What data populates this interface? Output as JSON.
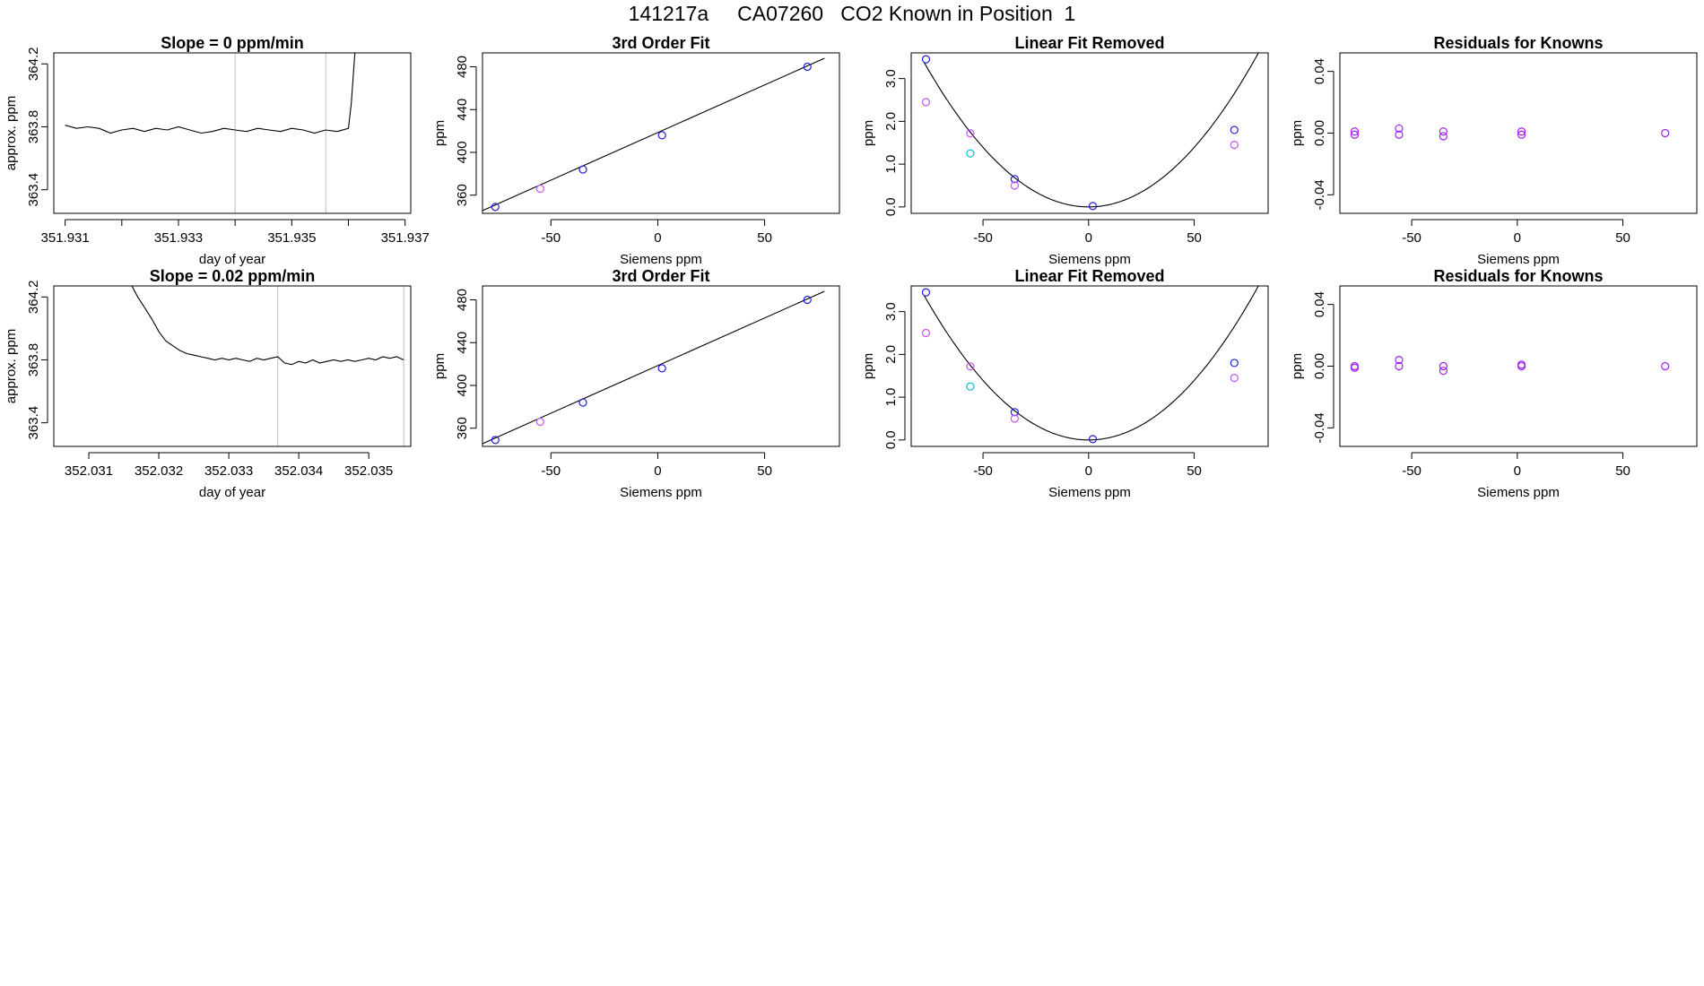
{
  "page_title": "141217a     CA07260   CO2 Known in Position  1",
  "colors": {
    "axis": "#000000",
    "line": "#000000",
    "vline": "#bebebe",
    "blue": "#1f1fd8",
    "violet": "#a020f0",
    "magenta": "#c355f0",
    "cyan": "#00bcd4"
  },
  "chart_data": [
    {
      "type": "line",
      "title": "Slope =  0  ppm/min",
      "xlabel": "day of year",
      "ylabel": "approx. ppm",
      "xlim": [
        351.9308,
        351.9371
      ],
      "ylim": [
        363.25,
        364.27
      ],
      "xticks": [
        351.931,
        351.932,
        351.933,
        351.934,
        351.935,
        351.936,
        351.937
      ],
      "xtick_labels": [
        "351.931",
        "",
        "351.933",
        "",
        "351.935",
        "",
        "351.937"
      ],
      "yticks": [
        363.4,
        363.8,
        364.2
      ],
      "ytick_labels": [
        "363.4",
        "363.8",
        "364.2"
      ],
      "vlines": [
        351.934,
        351.9356
      ],
      "x": [
        351.931,
        351.9312,
        351.9314,
        351.9316,
        351.9318,
        351.932,
        351.9322,
        351.9324,
        351.9326,
        351.9328,
        351.933,
        351.9332,
        351.9334,
        351.9336,
        351.9338,
        351.934,
        351.9342,
        351.9344,
        351.9346,
        351.9348,
        351.935,
        351.9352,
        351.9354,
        351.9356,
        351.9358,
        351.936,
        351.93605,
        351.93612
      ],
      "y": [
        363.81,
        363.79,
        363.8,
        363.79,
        363.76,
        363.78,
        363.79,
        363.77,
        363.79,
        363.78,
        363.8,
        363.78,
        363.76,
        363.77,
        363.79,
        363.78,
        363.77,
        363.79,
        363.78,
        363.77,
        363.79,
        363.78,
        363.76,
        363.78,
        363.77,
        363.79,
        363.95,
        364.3
      ]
    },
    {
      "type": "scatter",
      "title": "3rd Order Fit",
      "xlabel": "Siemens ppm",
      "ylabel": "ppm",
      "xlim": [
        -82,
        85
      ],
      "ylim": [
        343,
        493
      ],
      "xticks": [
        -50,
        0,
        50
      ],
      "xtick_labels": [
        "-50",
        "0",
        "50"
      ],
      "yticks": [
        360,
        400,
        440,
        480
      ],
      "ytick_labels": [
        "360",
        "400",
        "440",
        "480"
      ],
      "curve": [
        [
          -82,
          345.5
        ],
        [
          78,
          488
        ]
      ],
      "series": [
        {
          "name": "blue",
          "color": "blue",
          "x": [
            -76,
            -35,
            2,
            70
          ],
          "y": [
            349,
            384,
            416,
            480
          ]
        },
        {
          "name": "magenta",
          "color": "magenta",
          "x": [
            -55
          ],
          "y": [
            366
          ]
        }
      ]
    },
    {
      "type": "scatter",
      "title": "Linear Fit Removed",
      "xlabel": "Siemens ppm",
      "ylabel": "ppm",
      "xlim": [
        -84,
        85
      ],
      "ylim": [
        -0.15,
        3.6
      ],
      "xticks": [
        -50,
        0,
        50
      ],
      "xtick_labels": [
        "-50",
        "0",
        "50"
      ],
      "yticks": [
        0.0,
        1.0,
        2.0,
        3.0
      ],
      "ytick_labels": [
        "0.0",
        "1.0",
        "2.0",
        "3.0"
      ],
      "parabola": {
        "a": 0.000557,
        "x0": 0,
        "y0": 0
      },
      "series": [
        {
          "name": "blue",
          "color": "blue",
          "x": [
            -77,
            -35,
            2,
            69
          ],
          "y": [
            3.45,
            0.65,
            0.02,
            1.8
          ]
        },
        {
          "name": "magenta",
          "color": "magenta",
          "x": [
            -77,
            -56,
            -35,
            69
          ],
          "y": [
            2.45,
            1.72,
            0.5,
            1.45
          ]
        },
        {
          "name": "cyan",
          "color": "cyan",
          "x": [
            -56
          ],
          "y": [
            1.25
          ]
        }
      ]
    },
    {
      "type": "scatter",
      "title": "Residuals for Knowns",
      "xlabel": "Siemens ppm",
      "ylabel": "ppm",
      "xlim": [
        -84,
        85
      ],
      "ylim": [
        -0.052,
        0.052
      ],
      "xticks": [
        -50,
        0,
        50
      ],
      "xtick_labels": [
        "-50",
        "0",
        "50"
      ],
      "yticks": [
        -0.04,
        0.0,
        0.04
      ],
      "ytick_labels": [
        "-0.04",
        "0.00",
        "0.04"
      ],
      "series": [
        {
          "name": "violet",
          "color": "violet",
          "x": [
            -77,
            -77,
            -56,
            -56,
            -35,
            -35,
            2,
            2,
            70
          ],
          "y": [
            0.001,
            -0.001,
            0.003,
            -0.001,
            0.001,
            -0.002,
            0.001,
            -0.001,
            0.0
          ]
        }
      ]
    },
    {
      "type": "line",
      "title": "Slope =  0.02  ppm/min",
      "xlabel": "day of year",
      "ylabel": "approx. ppm",
      "xlim": [
        352.0305,
        352.0356
      ],
      "ylim": [
        363.25,
        364.27
      ],
      "xticks": [
        352.031,
        352.032,
        352.033,
        352.034,
        352.035
      ],
      "xtick_labels": [
        "352.031",
        "352.032",
        "352.033",
        "352.034",
        "352.035"
      ],
      "yticks": [
        363.4,
        363.8,
        364.2
      ],
      "ytick_labels": [
        "363.4",
        "363.8",
        "364.2"
      ],
      "vlines": [
        352.0337,
        352.0355
      ],
      "x": [
        352.03158,
        352.0317,
        352.0318,
        352.0319,
        352.032,
        352.0321,
        352.0322,
        352.0323,
        352.0324,
        352.0325,
        352.0326,
        352.0327,
        352.0328,
        352.0329,
        352.033,
        352.0331,
        352.0332,
        352.0333,
        352.0334,
        352.0335,
        352.0336,
        352.0337,
        352.0338,
        352.0339,
        352.034,
        352.0341,
        352.0342,
        352.0343,
        352.0344,
        352.0345,
        352.0346,
        352.0347,
        352.0348,
        352.0349,
        352.035,
        352.0351,
        352.0352,
        352.0353,
        352.0354,
        352.0355
      ],
      "y": [
        364.3,
        364.2,
        364.13,
        364.06,
        363.98,
        363.92,
        363.89,
        363.86,
        363.84,
        363.83,
        363.82,
        363.81,
        363.8,
        363.81,
        363.8,
        363.81,
        363.8,
        363.79,
        363.81,
        363.8,
        363.81,
        363.82,
        363.78,
        363.77,
        363.79,
        363.78,
        363.8,
        363.78,
        363.79,
        363.8,
        363.79,
        363.8,
        363.79,
        363.8,
        363.81,
        363.8,
        363.82,
        363.81,
        363.82,
        363.8
      ]
    },
    {
      "type": "scatter",
      "title": "3rd Order Fit",
      "xlabel": "Siemens ppm",
      "ylabel": "ppm",
      "xlim": [
        -82,
        85
      ],
      "ylim": [
        343,
        493
      ],
      "xticks": [
        -50,
        0,
        50
      ],
      "xtick_labels": [
        "-50",
        "0",
        "50"
      ],
      "yticks": [
        360,
        400,
        440,
        480
      ],
      "ytick_labels": [
        "360",
        "400",
        "440",
        "480"
      ],
      "curve": [
        [
          -82,
          345.5
        ],
        [
          78,
          488
        ]
      ],
      "series": [
        {
          "name": "blue",
          "color": "blue",
          "x": [
            -76,
            -35,
            2,
            70
          ],
          "y": [
            349,
            384,
            416,
            480
          ]
        },
        {
          "name": "magenta",
          "color": "magenta",
          "x": [
            -55
          ],
          "y": [
            366
          ]
        }
      ]
    },
    {
      "type": "scatter",
      "title": "Linear Fit Removed",
      "xlabel": "Siemens ppm",
      "ylabel": "ppm",
      "xlim": [
        -84,
        85
      ],
      "ylim": [
        -0.15,
        3.6
      ],
      "xticks": [
        -50,
        0,
        50
      ],
      "xtick_labels": [
        "-50",
        "0",
        "50"
      ],
      "yticks": [
        0.0,
        1.0,
        2.0,
        3.0
      ],
      "ytick_labels": [
        "0.0",
        "1.0",
        "2.0",
        "3.0"
      ],
      "parabola": {
        "a": 0.000557,
        "x0": 0,
        "y0": 0
      },
      "series": [
        {
          "name": "blue",
          "color": "blue",
          "x": [
            -77,
            -35,
            2,
            69
          ],
          "y": [
            3.45,
            0.65,
            0.02,
            1.8
          ]
        },
        {
          "name": "magenta",
          "color": "magenta",
          "x": [
            -77,
            -56,
            -35,
            69
          ],
          "y": [
            2.5,
            1.72,
            0.5,
            1.45
          ]
        },
        {
          "name": "cyan",
          "color": "cyan",
          "x": [
            -56
          ],
          "y": [
            1.25
          ]
        }
      ]
    },
    {
      "type": "scatter",
      "title": "Residuals for Knowns",
      "xlabel": "Siemens ppm",
      "ylabel": "ppm",
      "xlim": [
        -84,
        85
      ],
      "ylim": [
        -0.052,
        0.052
      ],
      "xticks": [
        -50,
        0,
        50
      ],
      "xtick_labels": [
        "-50",
        "0",
        "50"
      ],
      "yticks": [
        -0.04,
        0.0,
        0.04
      ],
      "ytick_labels": [
        "-0.04",
        "0.00",
        "0.04"
      ],
      "series": [
        {
          "name": "violet",
          "color": "violet",
          "x": [
            -77,
            -77,
            -56,
            -56,
            -35,
            -35,
            2,
            2,
            70
          ],
          "y": [
            0.0,
            -0.001,
            0.004,
            0.0,
            0.0,
            -0.003,
            0.001,
            0.0,
            0.0
          ]
        }
      ]
    }
  ]
}
